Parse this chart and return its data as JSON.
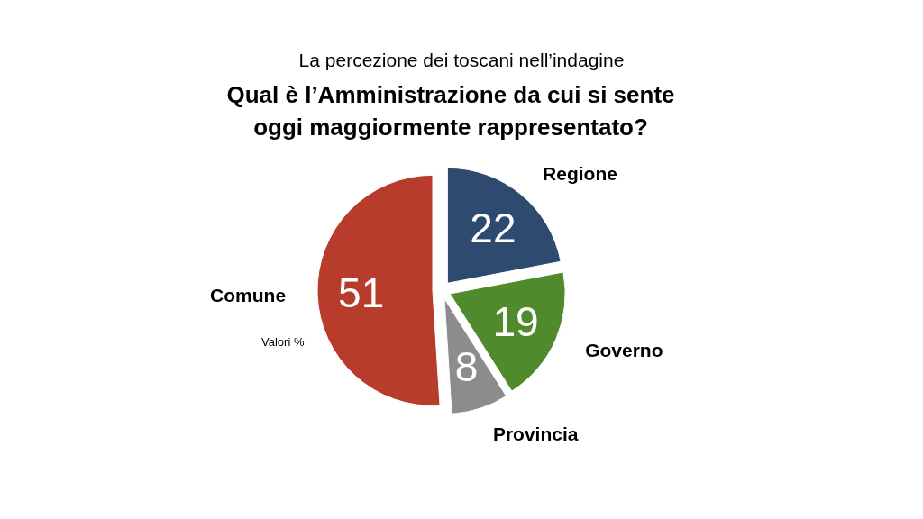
{
  "chart_data": {
    "type": "pie",
    "subtitle": "La percezione dei toscani nell’indagine",
    "title": "Qual è l’Amministrazione da cui si sente\noggi maggiormente rappresentato?",
    "categories": [
      "Regione",
      "Governo",
      "Provincia",
      "Comune"
    ],
    "values": [
      22,
      19,
      8,
      51
    ],
    "colors": [
      "#2e4a6f",
      "#4f8a2c",
      "#8c8c8c",
      "#b83c2c"
    ],
    "data_labels": true,
    "annotations": [
      "Valori %"
    ]
  }
}
